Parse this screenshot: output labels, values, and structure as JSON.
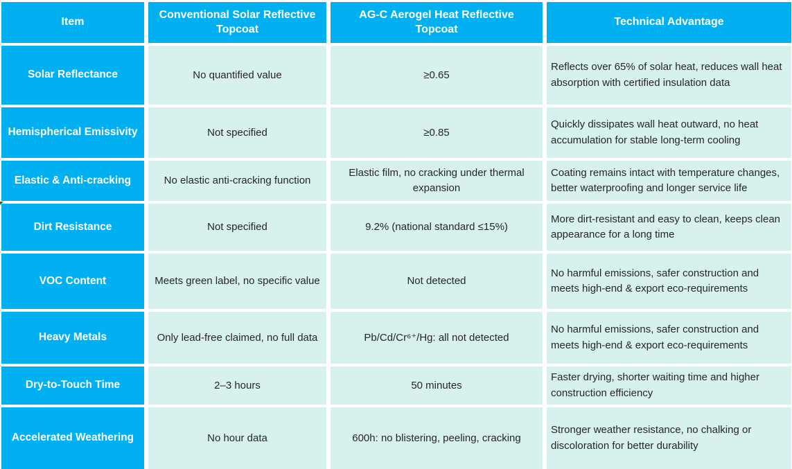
{
  "colors": {
    "header_blue": "#00B0F0",
    "cell_bg": "#D7F1EF",
    "body_text": "#262626",
    "marker_green": "#1E7145"
  },
  "table": {
    "columns": [
      {
        "label": "Item"
      },
      {
        "label": "Conventional Solar Reflective Topcoat"
      },
      {
        "label": "AG-C Aerogel Heat Reflective Topcoat"
      },
      {
        "label": "Technical Advantage"
      }
    ],
    "rows": [
      {
        "item": "Solar Reflectance",
        "conventional": "No quantified value",
        "agc": "≥0.65",
        "advantage": "Reflects over 65% of solar heat, reduces wall heat absorption with certified insulation data"
      },
      {
        "item": "Hemispherical Emissivity",
        "conventional": "Not specified",
        "agc": "≥0.85",
        "advantage": "Quickly dissipates wall heat outward, no heat accumulation for stable long-term cooling"
      },
      {
        "item": "Elastic & Anti-cracking",
        "conventional": "No elastic anti-cracking function",
        "agc": "Elastic film, no cracking under thermal expansion",
        "advantage": "Coating remains intact with temperature changes, better waterproofing and longer service life"
      },
      {
        "item": "Dirt Resistance",
        "conventional": "Not specified",
        "agc": "9.2% (national standard ≤15%)",
        "advantage": "More dirt-resistant and easy to clean, keeps clean appearance for a long time"
      },
      {
        "item": "VOC Content",
        "conventional": "Meets green label, no specific value",
        "agc": "Not detected",
        "advantage": "No harmful emissions, safer construction and meets high-end & export eco-requirements"
      },
      {
        "item": "Heavy Metals",
        "conventional": "Only lead-free claimed, no full data",
        "agc": "Pb/Cd/Cr⁶⁺/Hg: all not detected",
        "advantage": "No harmful emissions, safer construction and meets high-end & export eco-requirements"
      },
      {
        "item": "Dry-to-Touch Time",
        "conventional": "2–3 hours",
        "agc": "50 minutes",
        "advantage": "Faster drying, shorter waiting time and higher construction efficiency"
      },
      {
        "item": "Accelerated Weathering",
        "conventional": "No hour data",
        "agc": "600h: no blistering, peeling, cracking",
        "advantage": "Stronger weather resistance, no chalking or discoloration for better durability"
      }
    ]
  }
}
